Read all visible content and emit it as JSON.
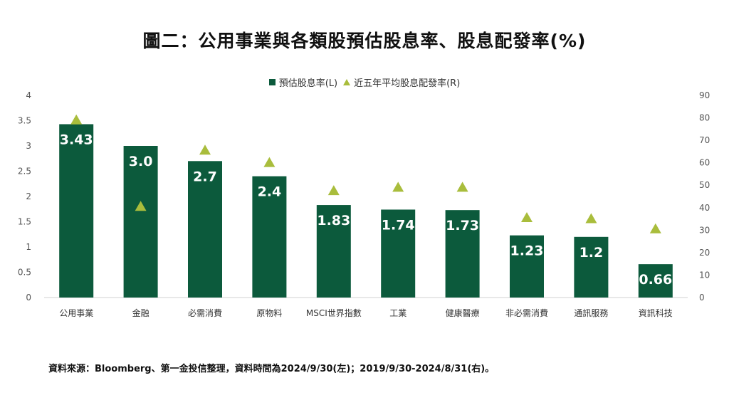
{
  "title": "圖二：公用事業與各類股預估股息率、股息配發率(%)",
  "source": "資料來源：Bloomberg、第一金投信整理，資料時間為2024/9/30(左)；2019/9/30-2024/8/31(右)。",
  "colors": {
    "bar": "#0c5a3c",
    "marker": "#a9bd3c",
    "axis": "#d0d0d0",
    "tick": "#555555"
  },
  "chart_data": {
    "type": "bar",
    "categories": [
      "公用事業",
      "金融",
      "必需消費",
      "原物料",
      "MSCI世界指數",
      "工業",
      "健康醫療",
      "非必需消費",
      "通訊服務",
      "資訊科技"
    ],
    "series": [
      {
        "name": "預估股息率(L)",
        "axis": "left",
        "type": "bar",
        "values": [
          3.43,
          3.0,
          2.7,
          2.4,
          1.83,
          1.74,
          1.73,
          1.23,
          1.2,
          0.66
        ],
        "labels": [
          "3.43",
          "3.0",
          "2.7",
          "2.4",
          "1.83",
          "1.74",
          "1.73",
          "1.23",
          "1.2",
          "0.66"
        ]
      },
      {
        "name": "近五年平均股息配發率(R)",
        "axis": "right",
        "type": "scatter",
        "marker": "triangle",
        "values": [
          79,
          40.5,
          65.5,
          60,
          47.5,
          49,
          49,
          35.5,
          35,
          30.5
        ]
      }
    ],
    "left_axis": {
      "min": 0,
      "max": 4,
      "ticks": [
        "0",
        "0.5",
        "1",
        "1.5",
        "2",
        "2.5",
        "3",
        "3.5",
        "4"
      ]
    },
    "right_axis": {
      "min": 0,
      "max": 90,
      "ticks": [
        "0",
        "10",
        "20",
        "30",
        "40",
        "50",
        "60",
        "70",
        "80",
        "90"
      ]
    },
    "legend_position": "top-center",
    "grid": false
  }
}
